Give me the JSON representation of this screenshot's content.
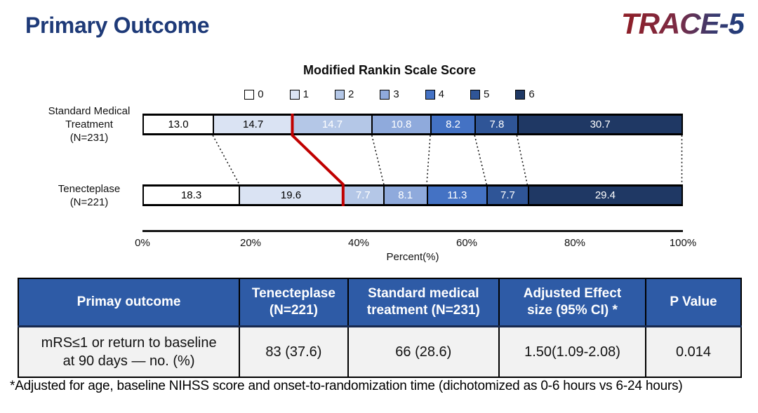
{
  "slide": {
    "title": "Primary Outcome",
    "logo": "TRACE-5"
  },
  "chart_data": {
    "type": "bar",
    "subtype": "horizontal-stacked-percent",
    "title": "Modified Rankin Scale Score",
    "xlabel": "Percent(%)",
    "x_ticks": [
      "0%",
      "20%",
      "40%",
      "60%",
      "80%",
      "100%"
    ],
    "xlim": [
      0,
      100
    ],
    "legend": [
      "0",
      "1",
      "2",
      "3",
      "4",
      "5",
      "6"
    ],
    "legend_position": "top-center",
    "segment_colors": [
      "#ffffff",
      "#dae3f3",
      "#b4c7e7",
      "#8faadc",
      "#4472c4",
      "#2f5597",
      "#1f3864"
    ],
    "segment_text_colors": [
      "#000000",
      "#000000",
      "#ffffff",
      "#ffffff",
      "#ffffff",
      "#ffffff",
      "#ffffff"
    ],
    "series": [
      {
        "label": "Standard Medical\nTreatment\n(N=231)",
        "values": [
          13.0,
          14.7,
          14.7,
          10.8,
          8.2,
          7.8,
          30.7
        ]
      },
      {
        "label": "Tenecteplase\n(N=221)",
        "values": [
          18.3,
          19.6,
          7.7,
          8.1,
          11.3,
          7.7,
          29.4
        ]
      }
    ],
    "cutoff_line": {
      "after_segment_index": 1,
      "color": "#c00000"
    },
    "connector_line_color": "#1a1a1a"
  },
  "table": {
    "headers": [
      "Primay outcome",
      "Tenecteplase\n(N=221)",
      "Standard medical\ntreatment (N=231)",
      "Adjusted Effect\nsize (95% CI) *",
      "P Value"
    ],
    "rows": [
      [
        "mRS≤1 or return to baseline\nat 90 days — no. (%)",
        "83 (37.6)",
        "66 (28.6)",
        "1.50(1.09-2.08)",
        "0.014"
      ]
    ]
  },
  "footnote": "*Adjusted for age, baseline NIHSS score and onset-to-randomization time (dichotomized as 0-6 hours vs 6-24 hours)"
}
